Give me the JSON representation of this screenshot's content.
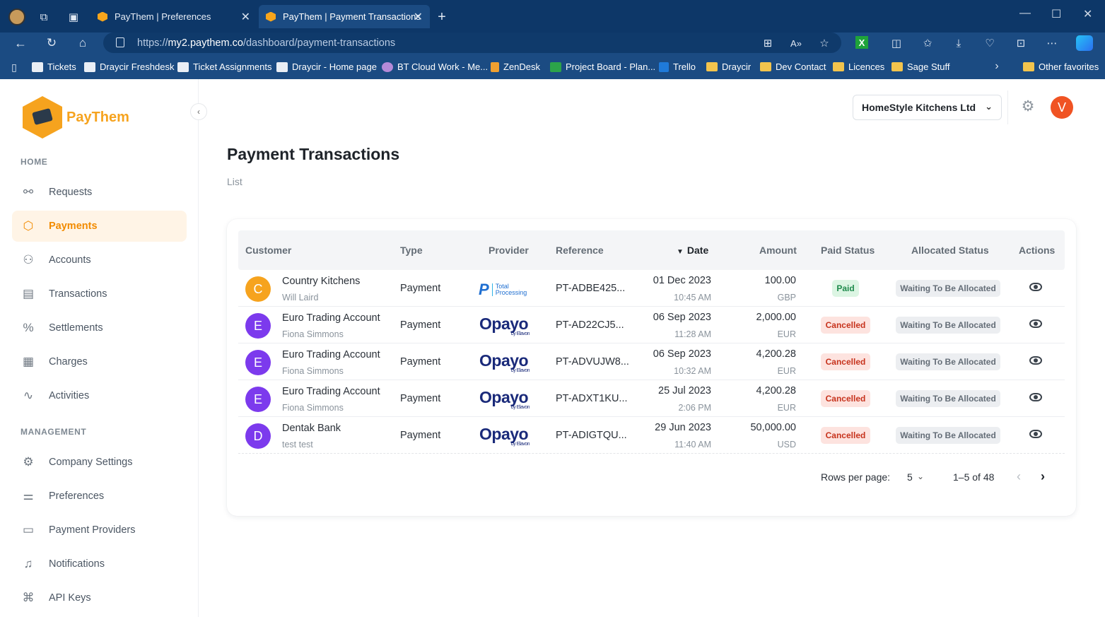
{
  "browser": {
    "tabs": [
      {
        "title": "PayThem | Preferences",
        "active": false
      },
      {
        "title": "PayThem | Payment Transactions",
        "active": true
      }
    ],
    "url_scheme": "https://",
    "url_host": "my2.paythem.co",
    "url_path": "/dashboard/payment-transactions",
    "bookmarks": [
      {
        "label": "Tickets",
        "type": "page"
      },
      {
        "label": "Draycir Freshdesk",
        "type": "page"
      },
      {
        "label": "Ticket Assignments",
        "type": "page"
      },
      {
        "label": "Draycir - Home page",
        "type": "page"
      },
      {
        "label": "BT Cloud Work - Me...",
        "type": "page"
      },
      {
        "label": "ZenDesk",
        "type": "page"
      },
      {
        "label": "Project Board - Plan...",
        "type": "page"
      },
      {
        "label": "Trello",
        "type": "page"
      },
      {
        "label": "Draycir",
        "type": "folder"
      },
      {
        "label": "Dev Contact",
        "type": "folder"
      },
      {
        "label": "Licences",
        "type": "folder"
      },
      {
        "label": "Sage Stuff",
        "type": "folder"
      }
    ],
    "other_favorites": "Other favorites"
  },
  "sidebar": {
    "brand": "PayThem",
    "home_label": "HOME",
    "home_items": [
      {
        "label": "Requests",
        "icon": "link-icon",
        "active": false
      },
      {
        "label": "Payments",
        "icon": "dollar-hex-icon",
        "active": true
      },
      {
        "label": "Accounts",
        "icon": "users-icon",
        "active": false
      },
      {
        "label": "Transactions",
        "icon": "receipt-icon",
        "active": false
      },
      {
        "label": "Settlements",
        "icon": "percent-icon",
        "active": false
      },
      {
        "label": "Charges",
        "icon": "calculator-icon",
        "active": false
      },
      {
        "label": "Activities",
        "icon": "activity-icon",
        "active": false
      }
    ],
    "management_label": "MANAGEMENT",
    "management_items": [
      {
        "label": "Company Settings",
        "icon": "gear-icon"
      },
      {
        "label": "Preferences",
        "icon": "sliders-icon"
      },
      {
        "label": "Payment Providers",
        "icon": "card-icon"
      },
      {
        "label": "Notifications",
        "icon": "bell-icon"
      },
      {
        "label": "API Keys",
        "icon": "nodes-icon"
      }
    ]
  },
  "header": {
    "company": "HomeStyle Kitchens Ltd",
    "user_initial": "V"
  },
  "page": {
    "title": "Payment Transactions",
    "subtitle": "List"
  },
  "table": {
    "columns": {
      "customer": "Customer",
      "type": "Type",
      "provider": "Provider",
      "reference": "Reference",
      "date": "Date",
      "amount": "Amount",
      "paid_status": "Paid Status",
      "allocated_status": "Allocated Status",
      "actions": "Actions"
    },
    "sort_indicator": "▼",
    "rows": [
      {
        "initial": "C",
        "avatar_color": "#f6a31e",
        "customer": "Country Kitchens",
        "person": "Will Laird",
        "type": "Payment",
        "provider": "Total Processing",
        "reference": "PT-ADBE425...",
        "date": "01 Dec 2023",
        "time": "10:45 AM",
        "amount": "100.00",
        "currency": "GBP",
        "paid_status": "Paid",
        "allocated_status": "Waiting To Be Allocated"
      },
      {
        "initial": "E",
        "avatar_color": "#7c3aed",
        "customer": "Euro Trading Account",
        "person": "Fiona Simmons",
        "type": "Payment",
        "provider": "Opayo",
        "reference": "PT-AD22CJ5...",
        "date": "06 Sep 2023",
        "time": "11:28 AM",
        "amount": "2,000.00",
        "currency": "EUR",
        "paid_status": "Cancelled",
        "allocated_status": "Waiting To Be Allocated"
      },
      {
        "initial": "E",
        "avatar_color": "#7c3aed",
        "customer": "Euro Trading Account",
        "person": "Fiona Simmons",
        "type": "Payment",
        "provider": "Opayo",
        "reference": "PT-ADVUJW8...",
        "date": "06 Sep 2023",
        "time": "10:32 AM",
        "amount": "4,200.28",
        "currency": "EUR",
        "paid_status": "Cancelled",
        "allocated_status": "Waiting To Be Allocated"
      },
      {
        "initial": "E",
        "avatar_color": "#7c3aed",
        "customer": "Euro Trading Account",
        "person": "Fiona Simmons",
        "type": "Payment",
        "provider": "Opayo",
        "reference": "PT-ADXT1KU...",
        "date": "25 Jul 2023",
        "time": "2:06 PM",
        "amount": "4,200.28",
        "currency": "EUR",
        "paid_status": "Cancelled",
        "allocated_status": "Waiting To Be Allocated"
      },
      {
        "initial": "D",
        "avatar_color": "#7c3aed",
        "customer": "Dentak Bank",
        "person": "test test",
        "type": "Payment",
        "provider": "Opayo",
        "reference": "PT-ADIGTQU...",
        "date": "29 Jun 2023",
        "time": "11:40 AM",
        "amount": "50,000.00",
        "currency": "USD",
        "paid_status": "Cancelled",
        "allocated_status": "Waiting To Be Allocated"
      }
    ]
  },
  "provider_logos": {
    "total_processing_mark": "P",
    "total_processing_line1": "Total",
    "total_processing_line2": "Processing",
    "opayo_word": "Opayo",
    "opayo_sub": "by Elavon"
  },
  "pagination": {
    "rows_per_page_label": "Rows per page:",
    "rows_per_page": "5",
    "range": "1–5 of 48"
  }
}
